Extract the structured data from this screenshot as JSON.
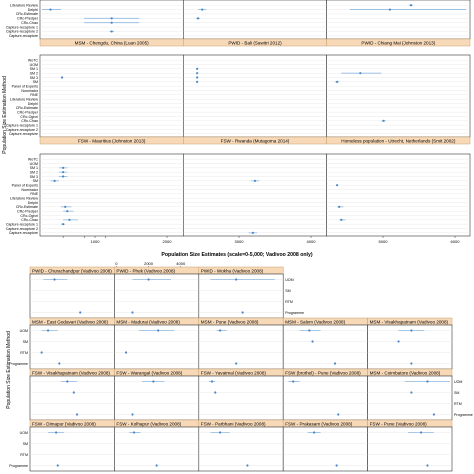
{
  "colors": {
    "strip": "#f7d9b8",
    "strip_border": "#c8a070",
    "point": "#4a86c4",
    "ci": "#8fb8e0",
    "grid": "#e4e4e4",
    "axis": "#333333"
  },
  "top": {
    "ylabel": "Population Size Estimation Method",
    "x_ticks": [
      "1000",
      "2000",
      "3000",
      "4000",
      "5000",
      "6000"
    ],
    "x_tick_values": [
      1000,
      2000,
      3000,
      4000,
      5000,
      6000
    ],
    "methods": [
      "WoTC",
      "UOM",
      "SM 1",
      "SM 2",
      "SM 3",
      "SM",
      "Panel of Experts",
      "Nominator",
      "RNE",
      "Literature Review",
      "Delphi",
      "CRc-Estimate",
      "CRc-Predper",
      "CRc-Ogivri",
      "CRc-Chao",
      "Capture-recapture 1",
      "Capture-recapture 2",
      "Capture-recapture"
    ],
    "visible_top_methods": [
      "Literature Review",
      "Delphi",
      "CRc-Estimate",
      "CRc-Predper",
      "CRc-Chao",
      "Capture-recapture 1",
      "Capture-recapture 2",
      "Capture-recapture"
    ],
    "rows": [
      [
        "",
        "",
        ""
      ],
      [
        "MSM - Chengdu, China (Luan 2005)",
        "PWID - Bali (Sawitri 2012)",
        "PWID - Chiang Mai (Johnston 2013)"
      ],
      [
        "FSW - Mauritius (Johnston 2013)",
        "FSW - Rwanda (Mutagoma 2014)",
        "Homeless population - Utrecht, Netherlands (Smit 2002)"
      ]
    ]
  },
  "bottom": {
    "title": "Population Size Estimates (scale=0-5,000; Vadivoo 2008 only)",
    "ylabel": "Population Size Estimation Method",
    "x_ticks": [
      "0",
      "2000",
      "4000"
    ],
    "x_tick_values": [
      0,
      2000,
      4000
    ],
    "methods": [
      "UOM",
      "SM",
      "RTM",
      "Programme"
    ],
    "rows": [
      [
        "PWID - Churachandpur (Vadivoo 2008)",
        "PWID - Phek (Vadivoo 2008)",
        "PWID - Wokha (Vadivoo 2008)",
        "",
        ""
      ],
      [
        "MSM - East Godavari (Vadivoo 2008)",
        "MSM - Madurai (Vadivoo 2008)",
        "MSM - Pune (Vadivoo 2008)",
        "MSM - Salem (Vadivoo 2008)",
        "MSM - Visakhapatnam (Vadivoo 2008)"
      ],
      [
        "FSW - Visakhapatnam (Vadivoo 2008)",
        "FSW - Warangal (Vadivoo 2008)",
        "FSW - Yavatmal (Vadivoo 2008)",
        "FSW (brothel) - Pune (Vadivoo 2008)",
        "MSM - Coimbatore (Vadivoo 2008)"
      ],
      [
        "FSW - Dimapur (Vadivoo 2008)",
        "FSW - Kolhapur (Vadivoo 2008)",
        "FSW - Parbhani (Vadivoo 2008)",
        "FSW - Prakasam (Vadivoo 2008)",
        "FSW - Pune (Vadivoo 2008)"
      ]
    ]
  },
  "chart_data": [
    {
      "type": "scatter",
      "description_of_layout": "trellis dot plot with interval bars",
      "xlim": [
        0,
        6600
      ],
      "panels": [
        {
          "name": "top-row-1-col-1",
          "points": [
            {
              "method": "Delphi",
              "est": 400,
              "lo": 0,
              "hi": 900
            },
            {
              "method": "CRc-Predper",
              "est": 3300,
              "lo": 2000,
              "hi": 4600
            },
            {
              "method": "CRc-Chao",
              "est": 3300,
              "lo": 2000,
              "hi": 4600
            },
            {
              "method": "Capture-recapture 2",
              "est": 3300,
              "lo": 3200,
              "hi": 3400
            }
          ]
        },
        {
          "name": "top-row-1-col-2",
          "points": [
            {
              "method": "Delphi",
              "est": 800,
              "lo": 600,
              "hi": 1000
            },
            {
              "method": "CRc-Predper",
              "est": 600,
              "lo": 500,
              "hi": 700
            }
          ]
        },
        {
          "name": "top-row-1-col-3",
          "points": [
            {
              "method": "Literature Review",
              "est": 3900,
              "lo": 3800,
              "hi": 4000
            },
            {
              "method": "Delphi",
              "est": 2900,
              "lo": 1000,
              "hi": 6500
            }
          ]
        },
        {
          "name": "MSM - Chengdu, China (Luan 2005)",
          "points": [
            {
              "method": "SM 3",
              "est": 950,
              "lo": 900,
              "hi": 1000
            }
          ]
        },
        {
          "name": "PWID - Bali (Sawitri 2012)",
          "points": [
            {
              "method": "SM 1",
              "est": 560,
              "lo": 520,
              "hi": 600
            },
            {
              "method": "SM 2",
              "est": 560,
              "lo": 520,
              "hi": 600
            },
            {
              "method": "SM 3",
              "est": 560,
              "lo": 520,
              "hi": 600
            },
            {
              "method": "SM",
              "est": 560,
              "lo": 520,
              "hi": 600
            }
          ]
        },
        {
          "name": "PWID - Chiang Mai (Johnston 2013)",
          "points": [
            {
              "method": "SM 2",
              "est": 1500,
              "lo": 600,
              "hi": 2500
            },
            {
              "method": "SM",
              "est": 400,
              "lo": 300,
              "hi": 500
            },
            {
              "method": "CRc-Chao",
              "est": 2600,
              "lo": 2500,
              "hi": 2700
            }
          ]
        },
        {
          "name": "FSW - Mauritius (Johnston 2013)",
          "points": [
            {
              "method": "CRc-Estimate",
              "est": 1100,
              "lo": 900,
              "hi": 1400
            },
            {
              "method": "CRc-Predper",
              "est": 1200,
              "lo": 1000,
              "hi": 1500
            },
            {
              "method": "CRc-Chao",
              "est": 1300,
              "lo": 1000,
              "hi": 1700
            },
            {
              "method": "Capture-recapture 1",
              "est": 1000,
              "lo": 900,
              "hi": 1100
            },
            {
              "method": "SM 1",
              "est": 1000,
              "lo": 800,
              "hi": 1200
            },
            {
              "method": "SM 2",
              "est": 1000,
              "lo": 800,
              "hi": 1200
            },
            {
              "method": "SM 3",
              "est": 1000,
              "lo": 800,
              "hi": 1200
            },
            {
              "method": "SM",
              "est": 600,
              "lo": 400,
              "hi": 800
            }
          ]
        },
        {
          "name": "FSW - Rwanda (Mutagoma 2014)",
          "points": [
            {
              "method": "SM",
              "est": 3300,
              "lo": 3100,
              "hi": 3500
            },
            {
              "method": "Capture-recapture",
              "est": 3200,
              "lo": 3000,
              "hi": 3400
            }
          ]
        },
        {
          "name": "Homeless population - Utrecht, Netherlands (Smit 2002)",
          "points": [
            {
              "method": "Panel of Experts",
              "est": 400,
              "lo": 350,
              "hi": 450
            },
            {
              "method": "CRc-Estimate",
              "est": 500,
              "lo": 400,
              "hi": 700
            },
            {
              "method": "CRc-Chao",
              "est": 600,
              "lo": 500,
              "hi": 800
            }
          ]
        }
      ]
    },
    {
      "type": "scatter",
      "title": "Population Size Estimates (scale=0-5,000; Vadivoo 2008 only)",
      "xlim": [
        0,
        5000
      ],
      "panels": [
        {
          "name": "PWID - Churachandpur (Vadivoo 2008)",
          "points": [
            {
              "method": "UOM",
              "est": 1400,
              "lo": 700,
              "hi": 2200
            },
            {
              "method": "Programme",
              "est": 3000,
              "lo": 3000,
              "hi": 3000
            }
          ]
        },
        {
          "name": "PWID - Phek (Vadivoo 2008)",
          "points": [
            {
              "method": "UOM",
              "est": 2000,
              "lo": 1000,
              "hi": 3400
            },
            {
              "method": "Programme",
              "est": 1000,
              "lo": 1000,
              "hi": 1000
            }
          ]
        },
        {
          "name": "PWID - Wokha (Vadivoo 2008)",
          "points": [
            {
              "method": "UOM",
              "est": 2200,
              "lo": 600,
              "hi": 4600
            },
            {
              "method": "Programme",
              "est": 2600,
              "lo": 2600,
              "hi": 2600
            }
          ]
        },
        {
          "name": "MSM - East Godavari (Vadivoo 2008)",
          "points": [
            {
              "method": "UOM",
              "est": 1000,
              "lo": 600,
              "hi": 1600
            },
            {
              "method": "RTM",
              "est": 600,
              "lo": 600,
              "hi": 600
            },
            {
              "method": "Programme",
              "est": 1700,
              "lo": 1700,
              "hi": 1700
            }
          ]
        },
        {
          "name": "MSM - Madurai (Vadivoo 2008)",
          "points": [
            {
              "method": "UOM",
              "est": 2600,
              "lo": 1400,
              "hi": 3600
            },
            {
              "method": "RTM",
              "est": 600,
              "lo": 600,
              "hi": 600
            }
          ]
        },
        {
          "name": "MSM - Pune (Vadivoo 2008)",
          "points": [
            {
              "method": "UOM",
              "est": 1200,
              "lo": 1000,
              "hi": 1600
            },
            {
              "method": "Programme",
              "est": 2200,
              "lo": 2200,
              "hi": 2200
            }
          ]
        },
        {
          "name": "MSM - Salem (Vadivoo 2008)",
          "points": [
            {
              "method": "UOM",
              "est": 1500,
              "lo": 900,
              "hi": 2200
            },
            {
              "method": "SM",
              "est": 1700,
              "lo": 1700,
              "hi": 1700
            },
            {
              "method": "Programme",
              "est": 3100,
              "lo": 3100,
              "hi": 3100
            }
          ]
        },
        {
          "name": "MSM - Visakhapatnam (Vadivoo 2008)",
          "points": [
            {
              "method": "UOM",
              "est": 2600,
              "lo": 1800,
              "hi": 3400
            },
            {
              "method": "SM",
              "est": 1800,
              "lo": 1800,
              "hi": 1800
            },
            {
              "method": "Programme",
              "est": 2600,
              "lo": 2600,
              "hi": 2600
            }
          ]
        },
        {
          "name": "FSW - Visakhapatnam (Vadivoo 2008)",
          "points": [
            {
              "method": "UOM",
              "est": 2200,
              "lo": 1800,
              "hi": 2800
            },
            {
              "method": "SM",
              "est": 2600,
              "lo": 2600,
              "hi": 2600
            },
            {
              "method": "Programme",
              "est": 2800,
              "lo": 2800,
              "hi": 2800
            }
          ]
        },
        {
          "name": "FSW - Warangal (Vadivoo 2008)",
          "points": [
            {
              "method": "UOM",
              "est": 2300,
              "lo": 1600,
              "hi": 3000
            },
            {
              "method": "Programme",
              "est": 1000,
              "lo": 1000,
              "hi": 1000
            }
          ]
        },
        {
          "name": "FSW - Yavatmal (Vadivoo 2008)",
          "points": [
            {
              "method": "UOM",
              "est": 700,
              "lo": 500,
              "hi": 900
            },
            {
              "method": "SM",
              "est": 900,
              "lo": 900,
              "hi": 900
            }
          ]
        },
        {
          "name": "FSW (brothel) - Pune (Vadivoo 2008)",
          "points": [
            {
              "method": "UOM",
              "est": 500,
              "lo": 200,
              "hi": 900
            },
            {
              "method": "Programme",
              "est": 3300,
              "lo": 3300,
              "hi": 3300
            }
          ]
        },
        {
          "name": "MSM - Coimbatore (Vadivoo 2008)",
          "points": [
            {
              "method": "UOM",
              "est": 3600,
              "lo": 2200,
              "hi": 5000
            },
            {
              "method": "SM",
              "est": 2600,
              "lo": 2600,
              "hi": 2600
            },
            {
              "method": "Programme",
              "est": 4000,
              "lo": 4000,
              "hi": 4000
            }
          ]
        },
        {
          "name": "FSW - Dimapur (Vadivoo 2008)",
          "points": [
            {
              "method": "UOM",
              "est": 1500,
              "lo": 1000,
              "hi": 2000
            },
            {
              "method": "Programme",
              "est": 1600,
              "lo": 1600,
              "hi": 1600
            }
          ]
        },
        {
          "name": "FSW - Kolhapur (Vadivoo 2008)",
          "points": [
            {
              "method": "UOM",
              "est": 1100,
              "lo": 800,
              "hi": 1500
            },
            {
              "method": "Programme",
              "est": 2500,
              "lo": 2500,
              "hi": 2500
            }
          ]
        },
        {
          "name": "FSW - Parbhani (Vadivoo 2008)",
          "points": [
            {
              "method": "UOM",
              "est": 1200,
              "lo": 600,
              "hi": 1800
            },
            {
              "method": "Programme",
              "est": 2900,
              "lo": 2900,
              "hi": 2900
            }
          ]
        },
        {
          "name": "FSW - Prakasam (Vadivoo 2008)",
          "points": [
            {
              "method": "UOM",
              "est": 1800,
              "lo": 1400,
              "hi": 2200
            },
            {
              "method": "Programme",
              "est": 3200,
              "lo": 3200,
              "hi": 3200
            }
          ]
        },
        {
          "name": "FSW - Pune (Vadivoo 2008)",
          "points": [
            {
              "method": "UOM",
              "est": 3200,
              "lo": 2400,
              "hi": 4000
            },
            {
              "method": "Programme",
              "est": 3600,
              "lo": 3600,
              "hi": 3600
            }
          ]
        }
      ]
    }
  ]
}
